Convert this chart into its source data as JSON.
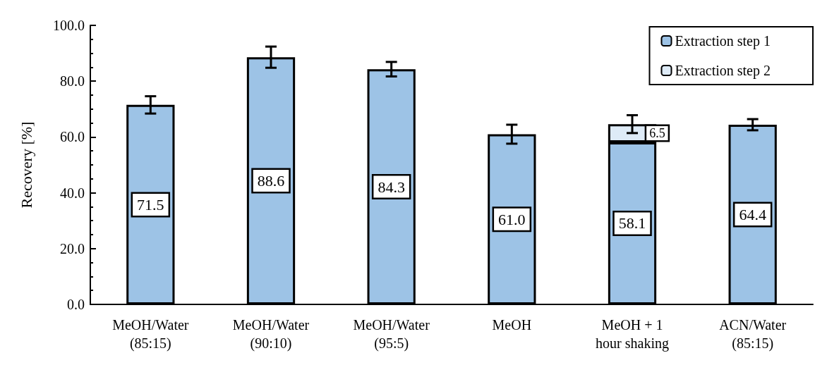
{
  "chart_data": {
    "type": "bar",
    "stacked": true,
    "ylabel": "Recovery [%]",
    "categories": [
      "MeOH/Water\n(85:15)",
      "MeOH/Water\n(90:10)",
      "MeOH/Water\n(95:5)",
      "MeOH",
      "MeOH + 1\nhour shaking",
      "ACN/Water\n(85:15)"
    ],
    "series": [
      {
        "name": "Extraction step 1",
        "color": "#9dc3e6",
        "values": [
          71.5,
          88.6,
          84.3,
          61.0,
          58.1,
          64.4
        ],
        "value_labels": [
          "71.5",
          "88.6",
          "84.3",
          "61.0",
          "58.1",
          "64.4"
        ],
        "errors": [
          3.1,
          3.8,
          2.6,
          3.4,
          null,
          2.0
        ]
      },
      {
        "name": "Extraction step 2",
        "color": "#deebf7",
        "values": [
          null,
          null,
          null,
          null,
          6.5,
          null
        ],
        "value_labels": [
          null,
          null,
          null,
          null,
          "6.5",
          null
        ],
        "errors": [
          null,
          null,
          null,
          null,
          3.2,
          null
        ]
      }
    ],
    "ylim": [
      0,
      100
    ],
    "yticks": [
      {
        "value": 0,
        "label": "0.0"
      },
      {
        "value": 20,
        "label": "20.0"
      },
      {
        "value": 40,
        "label": "40.0"
      },
      {
        "value": 60,
        "label": "60.0"
      },
      {
        "value": 80,
        "label": "80.0"
      },
      {
        "value": 100,
        "label": "100.0"
      }
    ],
    "legend": "top right",
    "grid": false
  }
}
